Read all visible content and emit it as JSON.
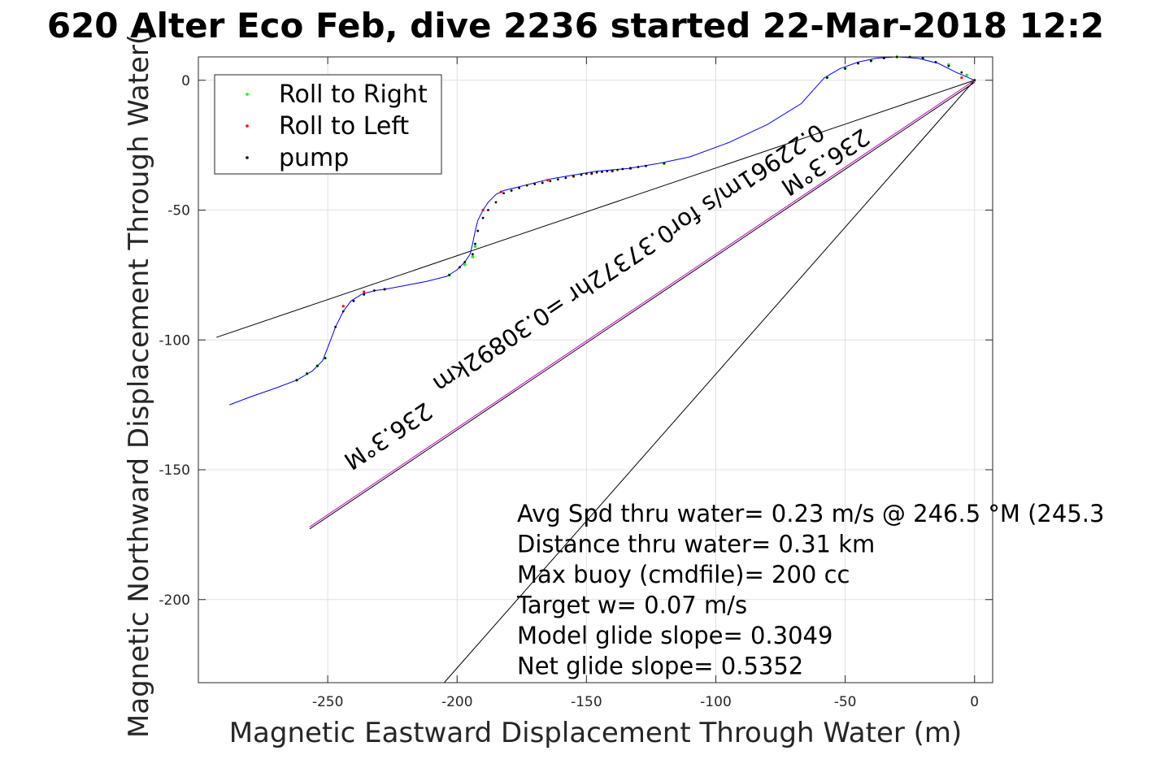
{
  "chart_data": {
    "type": "scatter",
    "title": "620 Alter Eco Feb, dive 2236 started 22-Mar-2018 12:2",
    "xlabel": "Magnetic Eastward Displacement Through Water (m)",
    "ylabel": "Magnetic Northward Displacement Through Water(",
    "xlim": [
      -300,
      7
    ],
    "ylim": [
      -232,
      9
    ],
    "xticks": [
      -250,
      -200,
      -150,
      -100,
      -50,
      0
    ],
    "xtick_labels": [
      "-250",
      "-200",
      "-150",
      "-100",
      "-50",
      "0"
    ],
    "yticks": [
      0,
      -50,
      -100,
      -150,
      -200
    ],
    "ytick_labels": [
      "0",
      "-50",
      "-100",
      "-150",
      "-200"
    ],
    "grid": true,
    "legend": {
      "placement": "top-left",
      "entries": [
        {
          "label": "Roll to Right",
          "color": "#00ff00"
        },
        {
          "label": "Roll to Left",
          "color": "#ff0000"
        },
        {
          "label": "pump",
          "color": "#000000"
        }
      ]
    },
    "track": {
      "color": "#0000ff",
      "x": [
        -288,
        -280,
        -270,
        -262,
        -256,
        -252,
        -250,
        -247,
        -244,
        -241,
        -237,
        -232,
        -228,
        -220,
        -212,
        -204,
        -200,
        -197,
        -195,
        -194,
        -193,
        -192,
        -190,
        -188,
        -185,
        -182,
        -176,
        -170,
        -164,
        -158,
        -152,
        -146,
        -140,
        -134,
        -128,
        -122,
        -110,
        -95,
        -80,
        -67,
        -58,
        -52,
        -45,
        -38,
        -30,
        -22,
        -14,
        -7,
        0
      ],
      "y": [
        -125,
        -122,
        -118.5,
        -115.5,
        -112,
        -108,
        -103,
        -95,
        -89,
        -85,
        -82.5,
        -81,
        -80.5,
        -79,
        -77.5,
        -75.5,
        -73,
        -70,
        -67,
        -63,
        -58,
        -54,
        -50,
        -47,
        -44,
        -42.5,
        -41,
        -39.5,
        -38,
        -37,
        -36,
        -35,
        -34.5,
        -34,
        -33,
        -32,
        -29.5,
        -24,
        -17,
        -9,
        1,
        4.5,
        7,
        8.5,
        9,
        8.5,
        6.5,
        3,
        0
      ]
    },
    "roll_right_points": {
      "x": [
        -262,
        -258,
        -254,
        -251,
        -203,
        -197,
        -194,
        -193,
        -120,
        -57,
        -50,
        -40,
        -30,
        -20,
        -10,
        -3
      ],
      "y": [
        -115.5,
        -113,
        -110,
        -107,
        -75,
        -71,
        -68,
        -64,
        -32,
        1,
        4.5,
        7.5,
        9,
        8.5,
        6,
        2
      ]
    },
    "roll_left_points": {
      "x": [
        -244,
        -236,
        -228,
        -190,
        -183,
        -165,
        -155,
        -148,
        -140,
        -133,
        -5,
        0
      ],
      "y": [
        -87,
        -81.5,
        -80.5,
        -50,
        -43,
        -38.5,
        -37,
        -36,
        -35,
        -34,
        1,
        0
      ]
    },
    "pump_points": {
      "x": [
        -262,
        -258,
        -254,
        -251,
        -247,
        -244,
        -240,
        -236,
        -232,
        -228,
        -203,
        -199,
        -197,
        -194,
        -193,
        -192,
        -190,
        -188,
        -185,
        -182,
        -179,
        -176,
        -173,
        -170,
        -167,
        -164,
        -161,
        -158,
        -155,
        -152,
        -150,
        -148,
        -146,
        -144,
        -142,
        -140,
        -138,
        -136,
        -133,
        -130,
        -127,
        -120,
        -57,
        -50,
        -45,
        -40,
        -35,
        -30,
        -25,
        -20,
        -15,
        -10,
        -5,
        0
      ],
      "y": [
        -115.5,
        -113,
        -110,
        -107,
        -95,
        -89,
        -85,
        -82.5,
        -81,
        -80.5,
        -75,
        -72,
        -70,
        -67,
        -63,
        -58,
        -53,
        -50,
        -47,
        -43.5,
        -42.5,
        -41.5,
        -40.5,
        -40,
        -39.5,
        -38.8,
        -38.2,
        -37.6,
        -37,
        -36.4,
        -36,
        -35.8,
        -35.5,
        -35.3,
        -35,
        -34.8,
        -34.5,
        -34.2,
        -33.8,
        -33.4,
        -33,
        -32,
        1,
        4.5,
        6.5,
        7.5,
        8.5,
        9,
        9,
        8.5,
        7,
        5.5,
        3,
        0
      ]
    },
    "reference_lines": [
      {
        "color": "#000000",
        "x": [
          -293,
          0
        ],
        "y": [
          -99,
          0
        ]
      },
      {
        "color": "#000000",
        "x": [
          -205,
          0
        ],
        "y": [
          -232,
          0
        ]
      },
      {
        "color": "#cc00cc",
        "x": [
          -257,
          0
        ],
        "y": [
          -172,
          0
        ]
      },
      {
        "color": "#000000",
        "x": [
          -257,
          0
        ],
        "y": [
          -172.8,
          -0.8
        ]
      }
    ],
    "annotations": [
      {
        "text": "236.3°M",
        "x": -227,
        "y": -136.5,
        "rotation": 146.3
      },
      {
        "text": "236.3°M",
        "x": -58,
        "y": -31,
        "rotation": 146.3
      },
      {
        "text": "0.22961m/s for0.37372hr =0.30892km",
        "x": -134,
        "y": -68,
        "rotation": 146.3
      }
    ],
    "stats": [
      "Avg Spd thru water=  0.23 m/s @ 246.5 °M (245.3",
      "Distance thru water=  0.31 km",
      "Max buoy (cmdfile)= 200 cc",
      "Target w= 0.07 m/s",
      "Model glide slope= 0.3049",
      "Net glide slope= 0.5352"
    ]
  }
}
